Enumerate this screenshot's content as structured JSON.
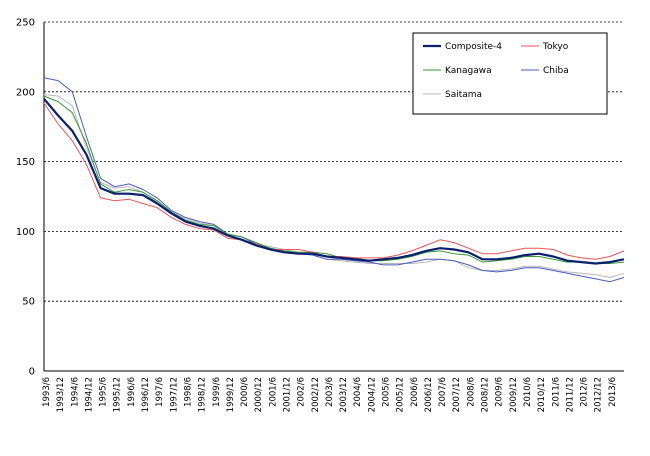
{
  "chart_data": {
    "type": "line",
    "title": "",
    "xlabel": "",
    "ylabel": "",
    "ylim": [
      0,
      250
    ],
    "yticks": [
      0,
      50,
      100,
      150,
      200,
      250
    ],
    "grid": "horizontal dashed",
    "legend_position": "top-right",
    "x_tick_labels": [
      "1993/6",
      "1993/12",
      "1994/6",
      "1994/12",
      "1995/6",
      "1995/12",
      "1996/6",
      "1996/12",
      "1997/6",
      "1997/12",
      "1998/6",
      "1998/12",
      "1999/6",
      "1999/12",
      "2000/6",
      "2000/12",
      "2001/6",
      "2001/12",
      "2002/6",
      "2002/12",
      "2003/6",
      "2003/12",
      "2004/6",
      "2004/12",
      "2005/6",
      "2005/12",
      "2006/6",
      "2006/12",
      "2007/6",
      "2007/12",
      "2008/6",
      "2008/12",
      "2009/6",
      "2009/12",
      "2010/6",
      "2010/12",
      "2011/6",
      "2011/12",
      "2012/6",
      "2012/12",
      "2013/6"
    ],
    "x": [
      "1993/6",
      "1993/12",
      "1994/6",
      "1994/12",
      "1995/6",
      "1995/12",
      "1996/6",
      "1996/12",
      "1997/6",
      "1997/12",
      "1998/6",
      "1998/12",
      "1999/6",
      "1999/12",
      "2000/6",
      "2000/12",
      "2001/6",
      "2001/12",
      "2002/6",
      "2002/12",
      "2003/6",
      "2003/12",
      "2004/6",
      "2004/12",
      "2005/6",
      "2005/12",
      "2006/6",
      "2006/12",
      "2007/6",
      "2007/12",
      "2008/6",
      "2008/12",
      "2009/6",
      "2009/12",
      "2010/6",
      "2010/12",
      "2011/6",
      "2011/12",
      "2012/6",
      "2012/12",
      "2013/6",
      "2013/12"
    ],
    "series": [
      {
        "name": "Composite-4",
        "color": "#0a1f6e",
        "width": 2.2,
        "values": [
          195,
          183,
          172,
          155,
          131,
          127,
          127,
          126,
          120,
          113,
          107,
          104,
          102,
          97,
          94,
          90,
          87,
          85,
          84,
          84,
          82,
          81,
          80,
          79,
          80,
          81,
          83,
          86,
          88,
          87,
          85,
          80,
          80,
          81,
          83,
          84,
          82,
          79,
          78,
          77,
          78,
          80
        ]
      },
      {
        "name": "Tokyo",
        "color": "#e8555a",
        "width": 1,
        "values": [
          192,
          177,
          165,
          148,
          124,
          122,
          123,
          120,
          117,
          110,
          105,
          102,
          101,
          95,
          94,
          91,
          87,
          87,
          87,
          85,
          82,
          82,
          81,
          81,
          81,
          83,
          86,
          90,
          94,
          92,
          88,
          84,
          84,
          86,
          88,
          88,
          87,
          83,
          81,
          80,
          82,
          86
        ]
      },
      {
        "name": "Kanagawa",
        "color": "#3a9a3a",
        "width": 1,
        "values": [
          197,
          193,
          185,
          163,
          134,
          128,
          130,
          128,
          122,
          114,
          108,
          105,
          104,
          98,
          96,
          92,
          88,
          86,
          85,
          85,
          84,
          81,
          81,
          79,
          79,
          80,
          82,
          85,
          86,
          84,
          83,
          78,
          79,
          80,
          82,
          82,
          80,
          78,
          78,
          77,
          77,
          78
        ]
      },
      {
        "name": "Chiba",
        "color": "#4a5cc8",
        "width": 1,
        "values": [
          210,
          208,
          200,
          168,
          138,
          132,
          134,
          130,
          124,
          115,
          110,
          107,
          105,
          98,
          96,
          91,
          88,
          85,
          84,
          83,
          80,
          80,
          79,
          78,
          76,
          76,
          78,
          80,
          80,
          79,
          76,
          72,
          71,
          72,
          74,
          74,
          72,
          70,
          68,
          66,
          64,
          67
        ]
      },
      {
        "name": "Saitama",
        "color": "#b8b8b8",
        "width": 1,
        "values": [
          198,
          197,
          190,
          160,
          135,
          131,
          132,
          128,
          121,
          114,
          109,
          106,
          104,
          98,
          96,
          91,
          89,
          87,
          85,
          83,
          80,
          79,
          78,
          77,
          77,
          77,
          77,
          78,
          80,
          79,
          74,
          72,
          72,
          73,
          75,
          75,
          73,
          71,
          70,
          69,
          67,
          70
        ]
      }
    ]
  }
}
